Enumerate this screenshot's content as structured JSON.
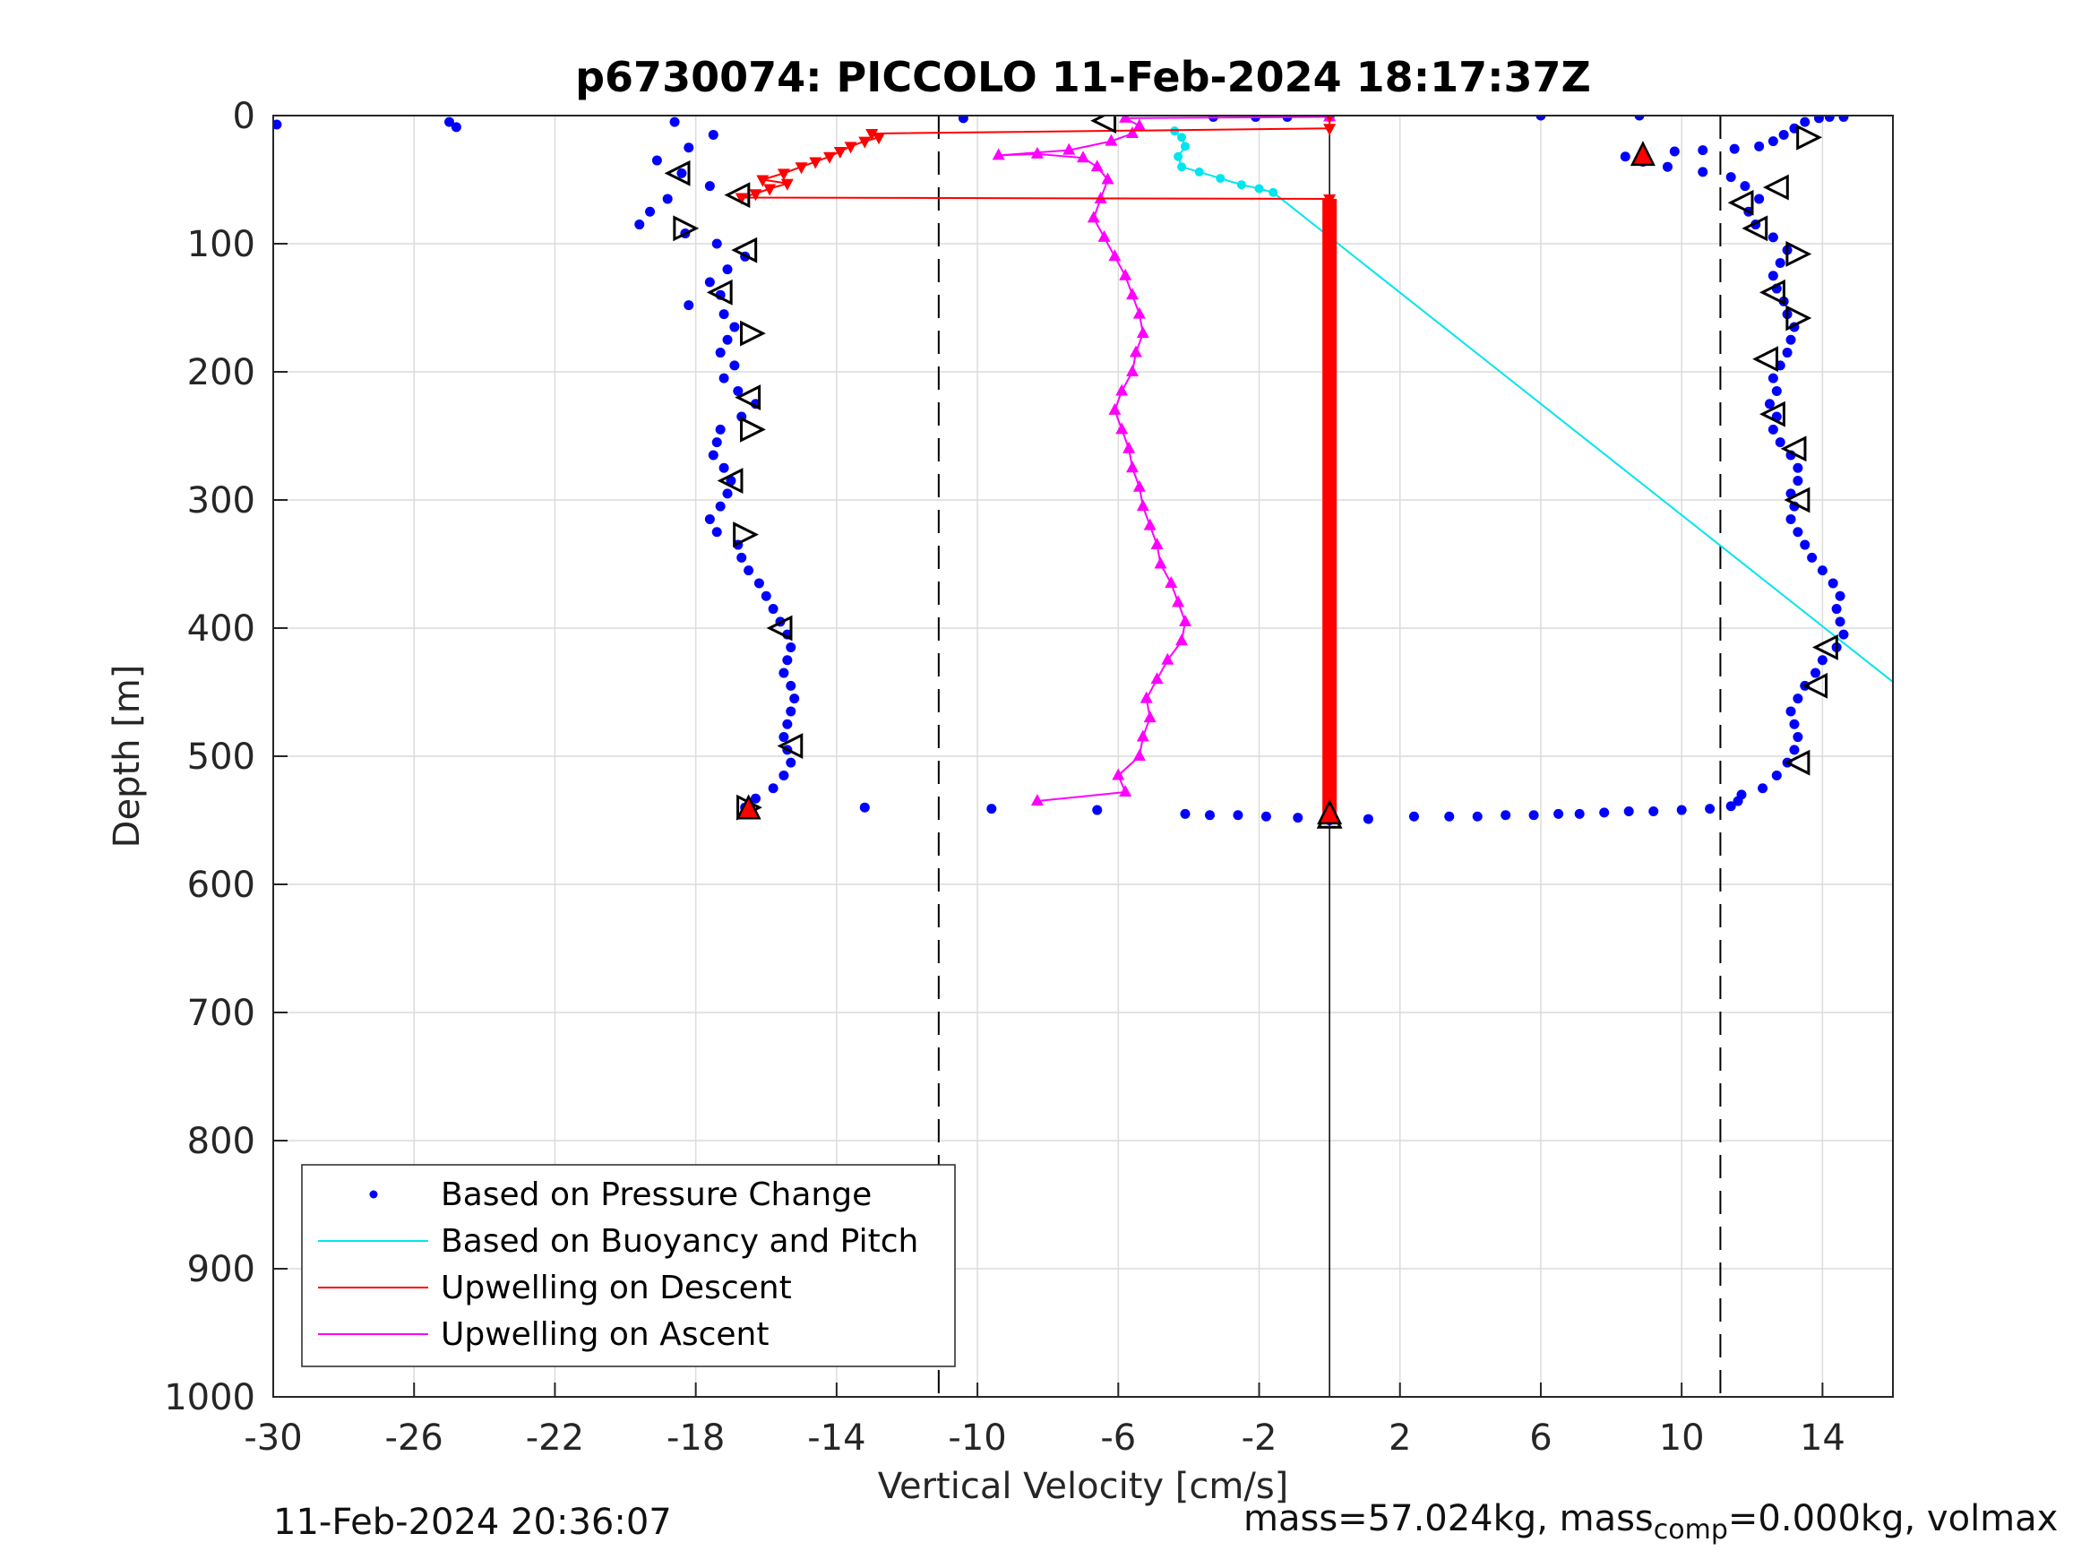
{
  "chart_data": {
    "type": "scatter",
    "title": "p6730074: PICCOLO 11-Feb-2024 18:17:37Z",
    "xlabel": "Vertical Velocity [cm/s]",
    "ylabel": "Depth [m]",
    "xlim": [
      -30,
      16
    ],
    "ylim": [
      0,
      1000
    ],
    "y_reversed": true,
    "grid": true,
    "x_ticks": [
      "-30",
      "-26",
      "-22",
      "-18",
      "-14",
      "-10",
      "-6",
      "-2",
      "2",
      "6",
      "10",
      "14"
    ],
    "x_tick_values": [
      -30,
      -26,
      -22,
      -18,
      -14,
      -10,
      -6,
      -2,
      2,
      6,
      10,
      14
    ],
    "y_ticks": [
      "0",
      "100",
      "200",
      "300",
      "400",
      "500",
      "600",
      "700",
      "800",
      "900",
      "1000"
    ],
    "y_tick_values": [
      0,
      100,
      200,
      300,
      400,
      500,
      600,
      700,
      800,
      900,
      1000
    ],
    "reference_lines": {
      "dashed_x": [
        -11.1,
        11.1
      ],
      "solid_x": [
        0
      ]
    },
    "legend_position": "bottom-left",
    "series": [
      {
        "name": "Based on Pressure Change",
        "color": "#0000ff",
        "descent": [
          [
            -18.6,
            5
          ],
          [
            -17.5,
            15
          ],
          [
            -18.2,
            25
          ],
          [
            -19.1,
            35
          ],
          [
            -18.4,
            45
          ],
          [
            -17.6,
            55
          ],
          [
            -18.8,
            65
          ],
          [
            -19.3,
            75
          ],
          [
            -19.6,
            85
          ],
          [
            -18.3,
            92
          ],
          [
            -17.4,
            100
          ],
          [
            -16.6,
            110
          ],
          [
            -17.1,
            120
          ],
          [
            -17.6,
            130
          ],
          [
            -17.3,
            140
          ],
          [
            -18.2,
            148
          ],
          [
            -17.2,
            155
          ],
          [
            -16.9,
            165
          ],
          [
            -17.1,
            175
          ],
          [
            -17.3,
            185
          ],
          [
            -16.9,
            195
          ],
          [
            -17.2,
            205
          ],
          [
            -16.8,
            215
          ],
          [
            -16.3,
            225
          ],
          [
            -16.7,
            235
          ],
          [
            -17.3,
            245
          ],
          [
            -17.4,
            255
          ],
          [
            -17.5,
            265
          ],
          [
            -17.2,
            275
          ],
          [
            -17.0,
            285
          ],
          [
            -17.1,
            295
          ],
          [
            -17.3,
            305
          ],
          [
            -17.6,
            315
          ],
          [
            -17.4,
            325
          ],
          [
            -16.8,
            335
          ],
          [
            -16.7,
            345
          ],
          [
            -16.5,
            355
          ],
          [
            -16.2,
            365
          ],
          [
            -16.0,
            375
          ],
          [
            -15.8,
            385
          ],
          [
            -15.6,
            395
          ],
          [
            -15.4,
            405
          ],
          [
            -15.3,
            415
          ],
          [
            -15.4,
            425
          ],
          [
            -15.5,
            435
          ],
          [
            -15.3,
            445
          ],
          [
            -15.2,
            455
          ],
          [
            -15.3,
            465
          ],
          [
            -15.4,
            475
          ],
          [
            -15.5,
            485
          ],
          [
            -15.4,
            495
          ],
          [
            -15.3,
            505
          ],
          [
            -15.5,
            515
          ],
          [
            -15.8,
            525
          ],
          [
            -16.3,
            533
          ],
          [
            -16.6,
            540
          ]
        ],
        "bottom": [
          [
            -13.2,
            540
          ],
          [
            -9.6,
            541
          ],
          [
            -6.6,
            542
          ],
          [
            -4.1,
            545
          ],
          [
            -3.4,
            546
          ],
          [
            -2.6,
            546
          ],
          [
            -1.8,
            547
          ],
          [
            -0.9,
            548
          ],
          [
            0.0,
            550
          ],
          [
            1.1,
            549
          ],
          [
            2.4,
            547
          ],
          [
            3.4,
            547
          ],
          [
            4.2,
            547
          ],
          [
            5.0,
            546
          ],
          [
            5.8,
            546
          ],
          [
            6.5,
            545
          ],
          [
            7.1,
            545
          ],
          [
            7.8,
            544
          ],
          [
            8.5,
            543
          ],
          [
            9.2,
            543
          ],
          [
            10.0,
            542
          ],
          [
            10.8,
            541
          ],
          [
            11.4,
            539
          ],
          [
            11.6,
            535
          ]
        ],
        "ascent": [
          [
            11.7,
            530
          ],
          [
            12.3,
            525
          ],
          [
            12.7,
            515
          ],
          [
            13.0,
            505
          ],
          [
            13.2,
            495
          ],
          [
            13.3,
            485
          ],
          [
            13.2,
            475
          ],
          [
            13.1,
            465
          ],
          [
            13.3,
            455
          ],
          [
            13.5,
            445
          ],
          [
            13.8,
            435
          ],
          [
            14.0,
            425
          ],
          [
            14.4,
            415
          ],
          [
            14.6,
            405
          ],
          [
            14.5,
            395
          ],
          [
            14.4,
            385
          ],
          [
            14.5,
            375
          ],
          [
            14.3,
            365
          ],
          [
            14.0,
            355
          ],
          [
            13.7,
            345
          ],
          [
            13.5,
            335
          ],
          [
            13.3,
            325
          ],
          [
            13.1,
            315
          ],
          [
            13.2,
            305
          ],
          [
            13.1,
            295
          ],
          [
            13.3,
            285
          ],
          [
            13.3,
            275
          ],
          [
            13.1,
            265
          ],
          [
            12.8,
            255
          ],
          [
            12.6,
            245
          ],
          [
            12.7,
            235
          ],
          [
            12.5,
            225
          ],
          [
            12.7,
            215
          ],
          [
            12.6,
            205
          ],
          [
            12.8,
            195
          ],
          [
            13.0,
            185
          ],
          [
            13.1,
            175
          ],
          [
            13.2,
            165
          ],
          [
            13.0,
            155
          ],
          [
            12.9,
            145
          ],
          [
            12.7,
            135
          ],
          [
            12.6,
            125
          ],
          [
            12.8,
            115
          ],
          [
            13.0,
            105
          ],
          [
            12.6,
            95
          ],
          [
            12.1,
            85
          ],
          [
            11.9,
            75
          ],
          [
            12.2,
            65
          ],
          [
            11.8,
            55
          ],
          [
            11.4,
            48
          ],
          [
            10.6,
            44
          ],
          [
            9.6,
            40
          ],
          [
            8.9,
            36
          ],
          [
            8.4,
            32
          ],
          [
            9.8,
            28
          ],
          [
            10.6,
            27
          ],
          [
            11.5,
            26
          ],
          [
            12.2,
            24
          ],
          [
            12.6,
            20
          ],
          [
            12.9,
            15
          ],
          [
            13.2,
            10
          ],
          [
            13.5,
            5
          ],
          [
            13.9,
            2
          ],
          [
            14.2,
            1
          ]
        ],
        "surface": [
          [
            -29.9,
            7
          ],
          [
            -25.0,
            5
          ],
          [
            -24.8,
            9
          ],
          [
            -10.4,
            2
          ],
          [
            -3.3,
            1
          ],
          [
            -2.1,
            1
          ],
          [
            -1.2,
            1
          ],
          [
            0.0,
            1
          ],
          [
            6.0,
            0
          ],
          [
            8.8,
            0
          ],
          [
            14.6,
            1
          ]
        ]
      },
      {
        "name": "Based on Buoyancy and Pitch",
        "color": "#00e5ee",
        "points": [
          [
            -4.4,
            12
          ],
          [
            -4.2,
            17
          ],
          [
            -4.1,
            24
          ],
          [
            -4.3,
            32
          ],
          [
            -4.2,
            40
          ],
          [
            -3.7,
            44
          ],
          [
            -3.1,
            49
          ],
          [
            -2.5,
            54
          ],
          [
            -2.0,
            57
          ],
          [
            -1.6,
            60
          ],
          [
            16.0,
            442
          ]
        ]
      },
      {
        "name": "Upwelling on Descent",
        "color": "#ff0000",
        "points": [
          [
            0.0,
            0
          ],
          [
            0.0,
            10
          ],
          [
            -13.0,
            14
          ],
          [
            -12.8,
            17
          ],
          [
            -13.2,
            20
          ],
          [
            -13.6,
            24
          ],
          [
            -13.9,
            28
          ],
          [
            -14.2,
            32
          ],
          [
            -14.6,
            36
          ],
          [
            -15.0,
            40
          ],
          [
            -15.5,
            45
          ],
          [
            -16.1,
            50
          ],
          [
            -15.4,
            53
          ],
          [
            -15.9,
            57
          ],
          [
            -16.3,
            61
          ],
          [
            -16.7,
            64
          ],
          [
            0.0,
            65
          ],
          [
            0.0,
            120
          ],
          [
            0.0,
            200
          ],
          [
            0.0,
            300
          ],
          [
            0.0,
            400
          ],
          [
            0.0,
            500
          ],
          [
            0.0,
            546
          ],
          [
            -16.5,
            540
          ]
        ]
      },
      {
        "name": "Upwelling on Ascent",
        "color": "#ff00ff",
        "points": [
          [
            -8.3,
            535
          ],
          [
            -5.8,
            528
          ],
          [
            -6.0,
            515
          ],
          [
            -5.4,
            500
          ],
          [
            -5.3,
            485
          ],
          [
            -5.1,
            470
          ],
          [
            -5.2,
            455
          ],
          [
            -4.9,
            440
          ],
          [
            -4.6,
            425
          ],
          [
            -4.2,
            410
          ],
          [
            -4.1,
            395
          ],
          [
            -4.3,
            380
          ],
          [
            -4.5,
            365
          ],
          [
            -4.8,
            350
          ],
          [
            -4.9,
            335
          ],
          [
            -5.1,
            320
          ],
          [
            -5.3,
            305
          ],
          [
            -5.4,
            290
          ],
          [
            -5.6,
            275
          ],
          [
            -5.7,
            260
          ],
          [
            -5.9,
            245
          ],
          [
            -6.1,
            230
          ],
          [
            -5.9,
            215
          ],
          [
            -5.6,
            200
          ],
          [
            -5.5,
            185
          ],
          [
            -5.3,
            170
          ],
          [
            -5.4,
            155
          ],
          [
            -5.6,
            140
          ],
          [
            -5.8,
            125
          ],
          [
            -6.1,
            110
          ],
          [
            -6.4,
            95
          ],
          [
            -6.7,
            80
          ],
          [
            -6.5,
            65
          ],
          [
            -6.3,
            50
          ],
          [
            -6.6,
            40
          ],
          [
            -7.0,
            33
          ],
          [
            -8.3,
            30
          ],
          [
            -9.4,
            31
          ],
          [
            -7.4,
            27
          ],
          [
            -6.2,
            20
          ],
          [
            -5.6,
            14
          ],
          [
            -5.4,
            8
          ],
          [
            -5.8,
            2
          ],
          [
            0.0,
            1
          ]
        ]
      },
      {
        "name": "",
        "color": "#000000",
        "marker_hollow_triangles": [
          [
            -6.4,
            4,
            "left"
          ],
          [
            -18.5,
            45,
            "left"
          ],
          [
            -16.8,
            62,
            "left"
          ],
          [
            -18.3,
            88,
            "right"
          ],
          [
            -16.6,
            105,
            "left"
          ],
          [
            -17.3,
            138,
            "left"
          ],
          [
            -16.4,
            170,
            "right"
          ],
          [
            -16.5,
            220,
            "left"
          ],
          [
            -16.4,
            245,
            "right"
          ],
          [
            -17.0,
            285,
            "left"
          ],
          [
            -16.6,
            327,
            "right"
          ],
          [
            -15.6,
            400,
            "left"
          ],
          [
            -15.3,
            492,
            "left"
          ],
          [
            -16.5,
            540,
            "right"
          ],
          [
            13.6,
            17,
            "right"
          ],
          [
            12.7,
            56,
            "left"
          ],
          [
            11.7,
            68,
            "left"
          ],
          [
            12.1,
            88,
            "left"
          ],
          [
            13.3,
            108,
            "right"
          ],
          [
            12.6,
            138,
            "left"
          ],
          [
            13.3,
            158,
            "right"
          ],
          [
            12.4,
            190,
            "left"
          ],
          [
            12.6,
            233,
            "left"
          ],
          [
            13.2,
            260,
            "left"
          ],
          [
            13.3,
            300,
            "left"
          ],
          [
            14.1,
            415,
            "left"
          ],
          [
            13.8,
            445,
            "left"
          ],
          [
            13.3,
            505,
            "left"
          ],
          [
            0.0,
            547,
            "up"
          ]
        ],
        "marker_red_triangles": [
          [
            8.9,
            30
          ],
          [
            -16.5,
            540
          ],
          [
            0.0,
            544
          ]
        ]
      }
    ],
    "legend": [
      "Based on Pressure Change",
      "Based on Buoyancy and Pitch",
      "Upwelling on Descent",
      "Upwelling on Ascent"
    ]
  },
  "footer": {
    "timestamp": "11-Feb-2024 20:36:07",
    "mass_text": "mass=57.024kg, mass",
    "mass_sub": "comp",
    "mass_rest": "=0.000kg, volmax"
  }
}
